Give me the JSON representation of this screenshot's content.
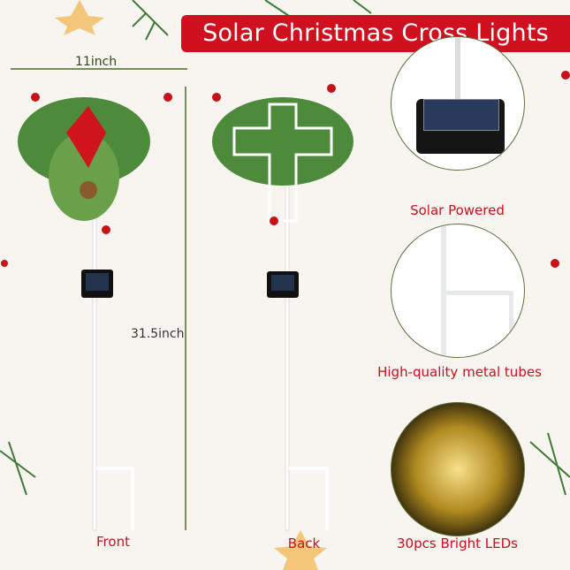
{
  "banner": {
    "title": "Solar Christmas Cross Lights",
    "color": "#d0101e"
  },
  "dimensions": {
    "width": "11inch",
    "height": "31.5inch"
  },
  "views": {
    "front": "Front",
    "back": "Back"
  },
  "features": [
    {
      "label": "Solar Powered",
      "icon": "solar-panel"
    },
    {
      "label": "High-quality metal tubes",
      "icon": "metal-tube"
    },
    {
      "label": "30pcs Bright LEDs",
      "icon": "led-string"
    }
  ],
  "colors": {
    "accent": "#c8101e",
    "circle_border": "#5b6f3a",
    "background": "#f8f4f0"
  }
}
